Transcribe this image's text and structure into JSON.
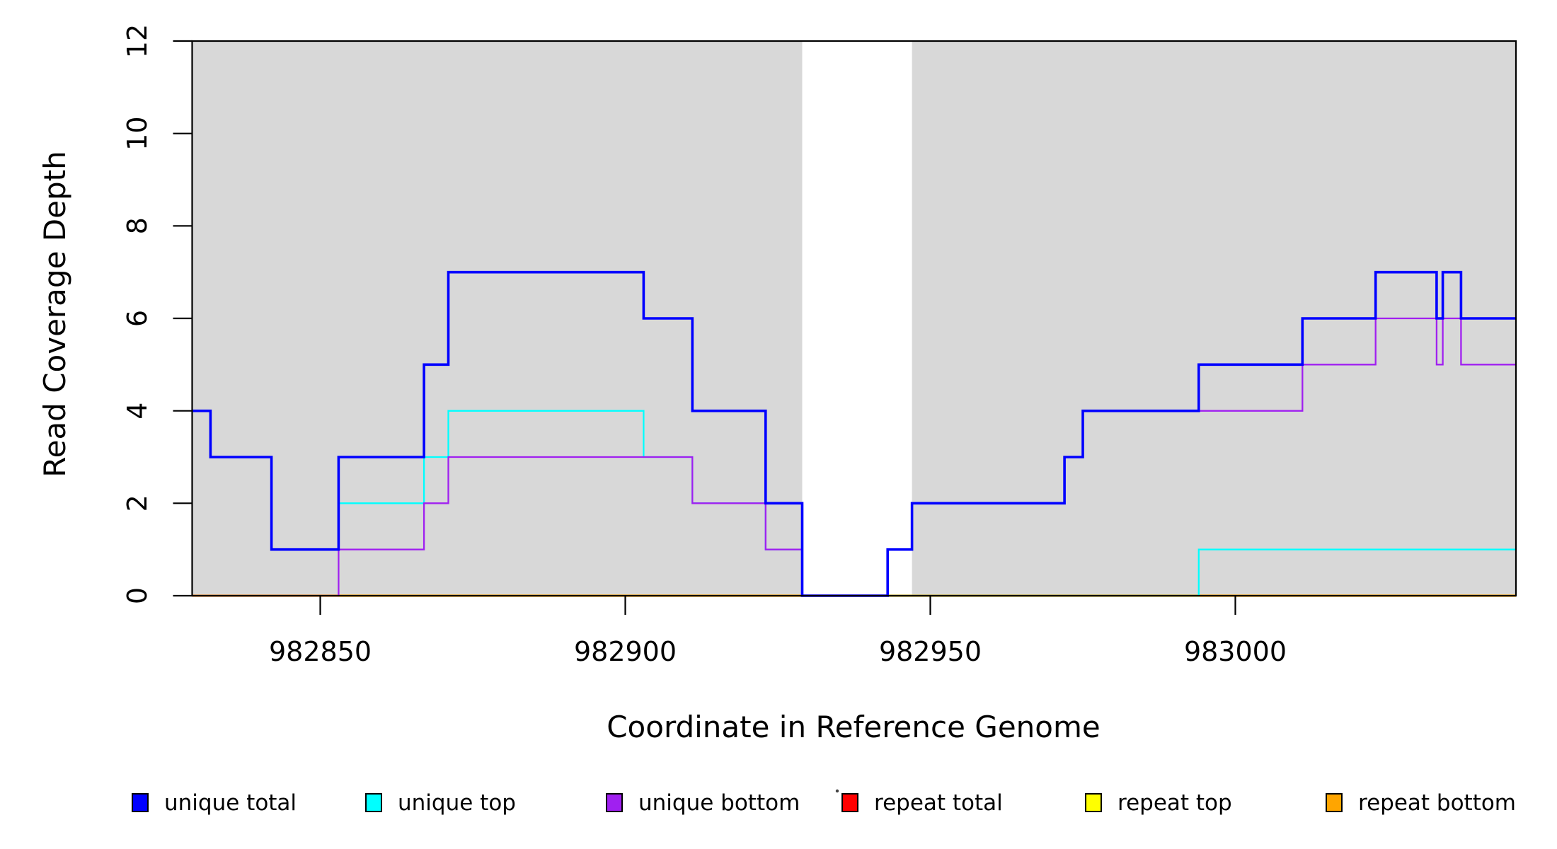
{
  "chart_data": {
    "type": "line",
    "subtype": "step",
    "title": "",
    "xlabel": "Coordinate in Reference Genome",
    "ylabel": "Read Coverage Depth",
    "xlim": [
      982829,
      983046
    ],
    "ylim": [
      0,
      12
    ],
    "x_ticks": [
      982850,
      982900,
      982950,
      983000
    ],
    "y_ticks": [
      0,
      2,
      4,
      6,
      8,
      10,
      12
    ],
    "grid": "off",
    "legend_position": "bottom",
    "shade_color": "#D8D8D8",
    "shaded_regions": [
      [
        982829,
        982929
      ],
      [
        982947,
        983046
      ]
    ],
    "white_gap": [
      982929,
      982947
    ],
    "draw_order": [
      "repeat total",
      "repeat top",
      "repeat bottom",
      "unique top",
      "unique bottom",
      "unique total"
    ],
    "series": [
      {
        "name": "unique total",
        "color": "#0000FF",
        "width": 3.6,
        "steps": [
          [
            982829,
            4
          ],
          [
            982832,
            3
          ],
          [
            982842,
            1
          ],
          [
            982853,
            3
          ],
          [
            982867,
            5
          ],
          [
            982871,
            7
          ],
          [
            982903,
            6
          ],
          [
            982911,
            4
          ],
          [
            982923,
            2
          ],
          [
            982929,
            0
          ],
          [
            982943,
            1
          ],
          [
            982947,
            2
          ],
          [
            982972,
            3
          ],
          [
            982975,
            4
          ],
          [
            982994,
            5
          ],
          [
            983011,
            6
          ],
          [
            983023,
            7
          ],
          [
            983033,
            6
          ],
          [
            983034,
            7
          ],
          [
            983037,
            6
          ]
        ],
        "end": 983046
      },
      {
        "name": "unique top",
        "color": "#00FFFF",
        "width": 2.3,
        "steps": [
          [
            982829,
            4
          ],
          [
            982832,
            3
          ],
          [
            982842,
            1
          ],
          [
            982853,
            2
          ],
          [
            982867,
            3
          ],
          [
            982871,
            4
          ],
          [
            982903,
            3
          ],
          [
            982911,
            2
          ],
          [
            982923,
            1
          ],
          [
            982929,
            0
          ],
          [
            982994,
            1
          ]
        ],
        "end": 983046
      },
      {
        "name": "unique bottom",
        "color": "#A020F0",
        "width": 2.3,
        "steps": [
          [
            982829,
            0
          ],
          [
            982853,
            1
          ],
          [
            982867,
            2
          ],
          [
            982871,
            3
          ],
          [
            982911,
            2
          ],
          [
            982923,
            1
          ],
          [
            982929,
            0
          ],
          [
            982943,
            1
          ],
          [
            982947,
            2
          ],
          [
            982972,
            3
          ],
          [
            982975,
            4
          ],
          [
            983011,
            5
          ],
          [
            983023,
            6
          ],
          [
            983033,
            5
          ],
          [
            983034,
            6
          ],
          [
            983037,
            5
          ]
        ],
        "end": 983046
      },
      {
        "name": "repeat total",
        "color": "#FF0000",
        "width": 2.3,
        "steps": [
          [
            982829,
            0
          ]
        ],
        "end": 983046
      },
      {
        "name": "repeat top",
        "color": "#FFFF00",
        "width": 2.3,
        "steps": [
          [
            982829,
            0
          ]
        ],
        "end": 983046
      },
      {
        "name": "repeat bottom",
        "color": "#FFA500",
        "width": 3.2,
        "steps": [
          [
            982829,
            0
          ]
        ],
        "end": 983046
      }
    ],
    "legend": [
      {
        "label": "unique total",
        "color": "#0000FF"
      },
      {
        "label": "unique top",
        "color": "#00FFFF"
      },
      {
        "label": "unique bottom",
        "color": "#A020F0"
      },
      {
        "label": "repeat total",
        "color": "#FF0000"
      },
      {
        "label": "repeat top",
        "color": "#FFFF00"
      },
      {
        "label": "repeat bottom",
        "color": "#FFA500"
      }
    ]
  }
}
